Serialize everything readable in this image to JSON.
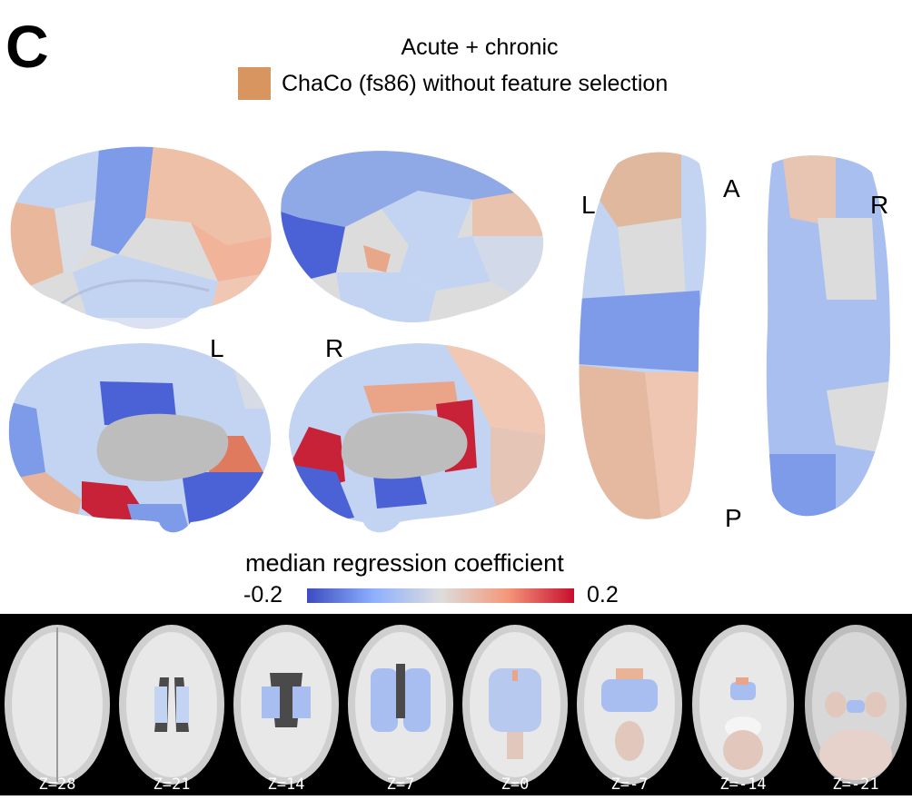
{
  "figure": {
    "panel_letter": "C",
    "title": "Acute + chronic",
    "legend": {
      "label": "ChaCo (fs86) without feature selection",
      "swatch_color": "#d9955f"
    }
  },
  "views": {
    "lateral_medial": {
      "left_label": "L",
      "right_label": "R"
    },
    "dorsal_ventral": {
      "left_label": "L",
      "right_label": "R",
      "anterior_label": "A",
      "posterior_label": "P"
    }
  },
  "colorbar": {
    "title": "median regression coefficient",
    "min_label": "-0.2",
    "max_label": "0.2",
    "colors": [
      "#3b4cc0",
      "#8db0fe",
      "#dddddd",
      "#f4987a",
      "#c80e2e"
    ]
  },
  "slices": [
    {
      "label": "Z=28"
    },
    {
      "label": "Z=21"
    },
    {
      "label": "Z=14"
    },
    {
      "label": "Z=7"
    },
    {
      "label": "Z=0"
    },
    {
      "label": "Z=-7"
    },
    {
      "label": "Z=-14"
    },
    {
      "label": "Z=-21"
    }
  ],
  "palette": {
    "strong_blue": "#4a62d6",
    "blue": "#7d9be8",
    "light_blue": "#c3d3f2",
    "neutral": "#dcdcdc",
    "gray_subcortical": "#bdbdbd",
    "light_red": "#eec0a8",
    "salmon": "#e89a78",
    "red": "#c82238"
  }
}
